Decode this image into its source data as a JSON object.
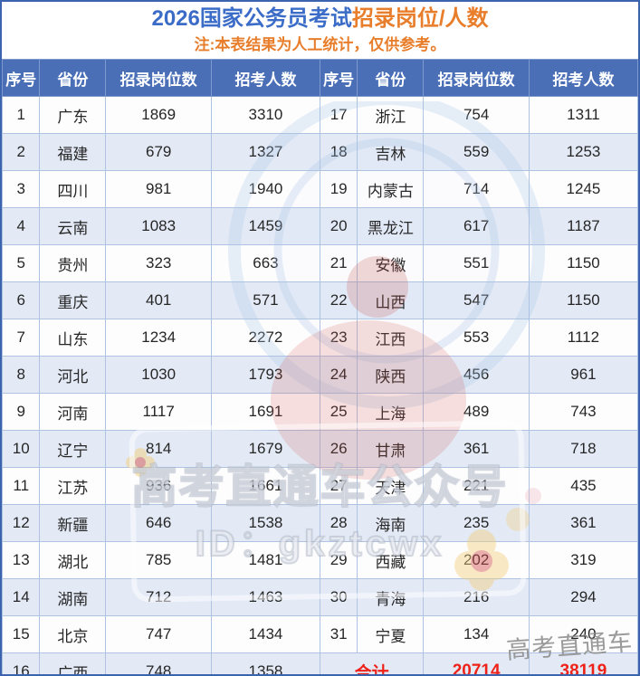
{
  "title": {
    "blue": "2026国家公务员考试",
    "orange": "招录岗位/人数"
  },
  "subtitle": "注:本表结果为人工统计，仅供参考。",
  "table": {
    "headers": [
      "序号",
      "省份",
      "招录岗位数",
      "招考人数",
      "序号",
      "省份",
      "招录岗位数",
      "招考人数"
    ]
  },
  "chart_data": {
    "type": "table",
    "title": "2026国家公务员考试招录岗位/人数",
    "note": "注:本表结果为人工统计，仅供参考。",
    "columns": [
      "序号",
      "省份",
      "招录岗位数",
      "招考人数"
    ],
    "rows": [
      [
        1,
        "广东",
        1869,
        3310
      ],
      [
        2,
        "福建",
        679,
        1327
      ],
      [
        3,
        "四川",
        981,
        1940
      ],
      [
        4,
        "云南",
        1083,
        1459
      ],
      [
        5,
        "贵州",
        323,
        663
      ],
      [
        6,
        "重庆",
        401,
        571
      ],
      [
        7,
        "山东",
        1234,
        2272
      ],
      [
        8,
        "河北",
        1030,
        1793
      ],
      [
        9,
        "河南",
        1117,
        1691
      ],
      [
        10,
        "辽宁",
        814,
        1679
      ],
      [
        11,
        "江苏",
        936,
        1661
      ],
      [
        12,
        "新疆",
        646,
        1538
      ],
      [
        13,
        "湖北",
        785,
        1481
      ],
      [
        14,
        "湖南",
        712,
        1463
      ],
      [
        15,
        "北京",
        747,
        1434
      ],
      [
        16,
        "广西",
        748,
        1358
      ],
      [
        17,
        "浙江",
        754,
        1311
      ],
      [
        18,
        "吉林",
        559,
        1253
      ],
      [
        19,
        "内蒙古",
        714,
        1245
      ],
      [
        20,
        "黑龙江",
        617,
        1187
      ],
      [
        21,
        "安徽",
        551,
        1150
      ],
      [
        22,
        "山西",
        547,
        1150
      ],
      [
        23,
        "江西",
        553,
        1112
      ],
      [
        24,
        "陕西",
        456,
        961
      ],
      [
        25,
        "上海",
        489,
        743
      ],
      [
        26,
        "甘肃",
        361,
        718
      ],
      [
        27,
        "天津",
        221,
        435
      ],
      [
        28,
        "海南",
        235,
        361
      ],
      [
        29,
        "西藏",
        202,
        319
      ],
      [
        30,
        "青海",
        216,
        294
      ],
      [
        31,
        "宁夏",
        134,
        240
      ]
    ],
    "total": {
      "label": "合计",
      "positions": 20714,
      "candidates": 38119
    }
  },
  "watermarks": {
    "center_line1": "高考直通车公众号",
    "center_line2": "ID：gkztcwx",
    "corner": "高考直通车"
  },
  "colors": {
    "header_bg": "#4a6fb7",
    "outer_border": "#3c64ae",
    "grid_line": "#aec3e2",
    "row_shaded": "#e3eaf6",
    "total_bg": "#fdeecb",
    "total_text": "#ee2218",
    "title_blue": "#3b6cc7",
    "accent_orange": "#e87e2b"
  }
}
